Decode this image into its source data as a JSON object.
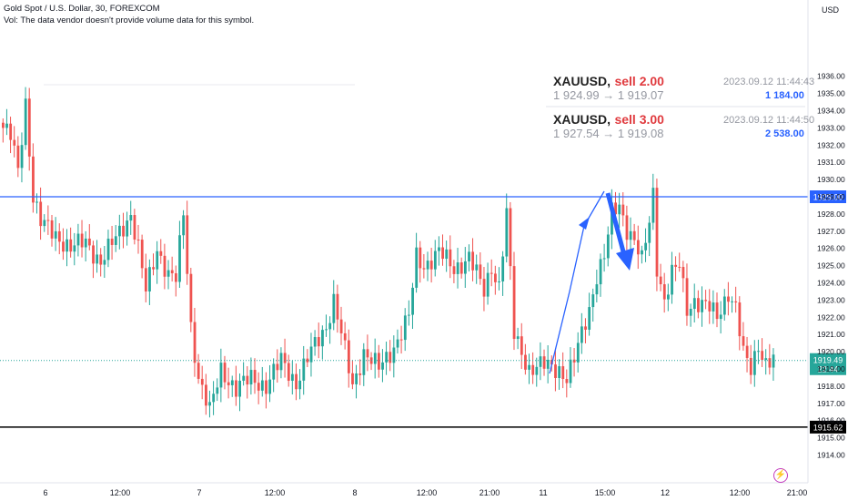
{
  "header": {
    "title": "Gold Spot / U.S. Dollar, 30, FOREXCOM",
    "vol_note": "Vol: The data vendor doesn't provide volume data for this symbol."
  },
  "currency": "USD",
  "trades": [
    {
      "symbol": "XAUUSD,",
      "side": "sell 2.00",
      "route": "1 924.99 → 1 919.07",
      "time": "2023.09.12 11:44:43",
      "pnl": "1 184.00"
    },
    {
      "symbol": "XAUUSD,",
      "side": "sell 3.00",
      "route": "1 927.54 → 1 919.08",
      "time": "2023.09.12 11:44:50",
      "pnl": "2 538.00"
    }
  ],
  "price_labels": {
    "blue_line": "1929.00",
    "black_line": "1915.62",
    "last_price": "1919.49",
    "countdown": "22:44"
  },
  "colors": {
    "up": "#26a69a",
    "down": "#ef5350",
    "blue_line": "#2962ff",
    "black_line": "#000000",
    "arrow": "#2962ff"
  },
  "icons": {
    "tv": "lightning-icon"
  },
  "chart_data": {
    "type": "candlestick",
    "title": "Gold Spot / U.S. Dollar, 30, FOREXCOM",
    "ylim": [
      1913.5,
      1936.6
    ],
    "y_ticks": [
      1914,
      1915,
      1916,
      1917,
      1918,
      1919,
      1920,
      1921,
      1922,
      1923,
      1924,
      1925,
      1926,
      1927,
      1928,
      1929,
      1930,
      1931,
      1932,
      1933,
      1934,
      1935,
      1936
    ],
    "x_ticks": [
      "6",
      "12:00",
      "7",
      "12:00",
      "8",
      "12:00",
      "21:00",
      "11",
      "15:00",
      "12",
      "12:00",
      "21:00"
    ],
    "horizontal_lines": [
      {
        "value": 1929.0,
        "color": "blue"
      },
      {
        "value": 1915.62,
        "color": "black"
      }
    ],
    "last_price": 1919.49,
    "anchors": [
      [
        0,
        1933.0
      ],
      [
        2,
        1932.5
      ],
      [
        4,
        1930.5
      ],
      [
        6,
        1934.5
      ],
      [
        8,
        1929.0
      ],
      [
        10,
        1927.5
      ],
      [
        14,
        1926.8
      ],
      [
        18,
        1926.0
      ],
      [
        22,
        1926.4
      ],
      [
        26,
        1925.2
      ],
      [
        30,
        1926.6
      ],
      [
        34,
        1928.0
      ],
      [
        36,
        1926.0
      ],
      [
        38,
        1923.5
      ],
      [
        41,
        1926.0
      ],
      [
        44,
        1924.5
      ],
      [
        46,
        1924.2
      ],
      [
        48,
        1928.0
      ],
      [
        50,
        1921.5
      ],
      [
        52,
        1918.5
      ],
      [
        55,
        1916.5
      ],
      [
        58,
        1919.0
      ],
      [
        62,
        1917.8
      ],
      [
        66,
        1918.5
      ],
      [
        70,
        1918.0
      ],
      [
        74,
        1919.5
      ],
      [
        78,
        1918.2
      ],
      [
        82,
        1920.0
      ],
      [
        86,
        1921.5
      ],
      [
        88,
        1923.0
      ],
      [
        90,
        1921.0
      ],
      [
        93,
        1918.0
      ],
      [
        96,
        1920.0
      ],
      [
        100,
        1919.0
      ],
      [
        104,
        1920.3
      ],
      [
        108,
        1922.0
      ],
      [
        110,
        1925.5
      ],
      [
        112,
        1925.0
      ],
      [
        116,
        1925.8
      ],
      [
        120,
        1924.8
      ],
      [
        124,
        1925.5
      ],
      [
        128,
        1923.5
      ],
      [
        130,
        1925.0
      ],
      [
        132,
        1923.8
      ],
      [
        134,
        1928.0
      ],
      [
        136,
        1921.0
      ],
      [
        140,
        1919.0
      ],
      [
        144,
        1919.2
      ],
      [
        148,
        1919.0
      ],
      [
        150,
        1918.5
      ],
      [
        152,
        1919.5
      ],
      [
        156,
        1922.5
      ],
      [
        158,
        1924.5
      ],
      [
        160,
        1925.5
      ],
      [
        162,
        1928.0
      ],
      [
        164,
        1928.5
      ],
      [
        166,
        1927.2
      ],
      [
        168,
        1926.5
      ],
      [
        170,
        1925.2
      ],
      [
        172,
        1927.5
      ],
      [
        173,
        1929.2
      ],
      [
        174,
        1925.0
      ],
      [
        176,
        1923.0
      ],
      [
        178,
        1924.5
      ],
      [
        180,
        1925.0
      ],
      [
        182,
        1922.5
      ],
      [
        184,
        1923.0
      ],
      [
        188,
        1922.5
      ],
      [
        190,
        1922.0
      ],
      [
        193,
        1923.5
      ],
      [
        195,
        1922.5
      ],
      [
        197,
        1919.8
      ],
      [
        199,
        1919.0
      ],
      [
        201,
        1920.5
      ],
      [
        203,
        1919.3
      ],
      [
        205,
        1919.5
      ]
    ],
    "candle_count": 206
  }
}
